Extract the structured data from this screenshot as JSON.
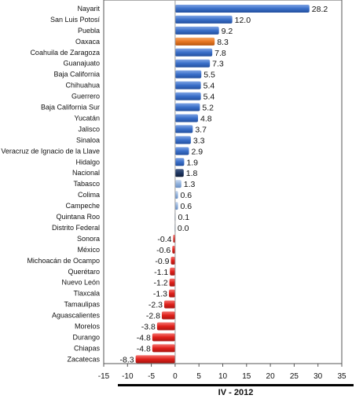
{
  "chart_data": {
    "type": "bar",
    "orientation": "horizontal",
    "categories": [
      "Nayarit",
      "San Luis Potosí",
      "Puebla",
      "Oaxaca",
      "Coahuila de Zaragoza",
      "Guanajuato",
      "Baja California",
      "Chihuahua",
      "Guerrero",
      "Baja California Sur",
      "Yucatán",
      "Jalisco",
      "Sinaloa",
      "Veracruz de Ignacio de la Llave",
      "Hidalgo",
      "Nacional",
      "Tabasco",
      "Colima",
      "Campeche",
      "Quintana Roo",
      "Distrito Federal",
      "Sonora",
      "México",
      "Michoacán de Ocampo",
      "Querétaro",
      "Nuevo León",
      "Tlaxcala",
      "Tamaulipas",
      "Aguascalientes",
      "Morelos",
      "Durango",
      "Chiapas",
      "Zacatecas"
    ],
    "values": [
      28.2,
      12.0,
      9.2,
      8.3,
      7.8,
      7.3,
      5.5,
      5.4,
      5.4,
      5.2,
      4.8,
      3.7,
      3.3,
      2.9,
      1.9,
      1.8,
      1.3,
      0.6,
      0.6,
      0.1,
      0.0,
      -0.4,
      -0.6,
      -0.9,
      -1.1,
      -1.2,
      -1.3,
      -2.3,
      -2.8,
      -3.8,
      -4.8,
      -4.8,
      -8.3
    ],
    "value_labels": [
      "28.2",
      "12.0",
      "9.2",
      "8.3",
      "7.8",
      "7.3",
      "5.5",
      "5.4",
      "5.4",
      "5.2",
      "4.8",
      "3.7",
      "3.3",
      "2.9",
      "1.9",
      "1.8",
      "1.3",
      "0.6",
      "0.6",
      "0.1",
      "0.0",
      "-0.4",
      "-0.6",
      "-0.9",
      "-1.1",
      "-1.2",
      "-1.3",
      "-2.3",
      "-2.8",
      "-3.8",
      "-4.8",
      "-4.8",
      "-8.3"
    ],
    "xlim": [
      -15,
      35
    ],
    "xticks": [
      -15,
      -10,
      -5,
      0,
      5,
      10,
      15,
      20,
      25,
      30,
      35
    ],
    "xlabel": "IV - 2012",
    "grid": false,
    "colors": {
      "positive": "#3a6fc9",
      "highlight": "#e87722",
      "national": "#1f3864",
      "near_zero": "#8fb0dc",
      "negative": "#e0201b"
    },
    "highlight_category": "Oaxaca",
    "national_category": "Nacional"
  }
}
